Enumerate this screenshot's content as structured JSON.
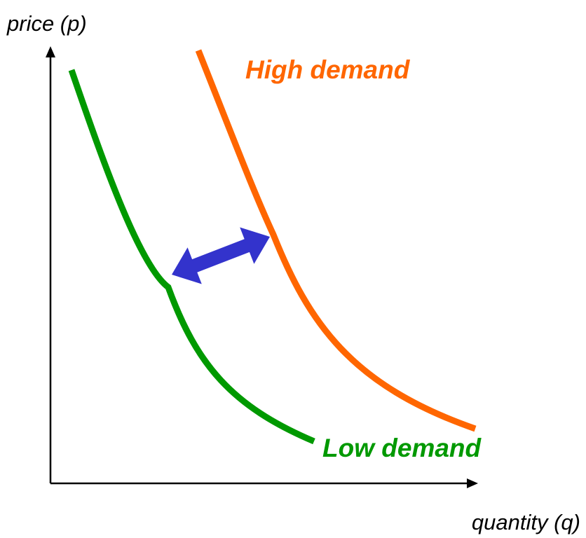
{
  "axes": {
    "y_label": "price (p)",
    "x_label": "quantity (q)"
  },
  "curves": [
    {
      "label": "High demand",
      "color": "#ff6600"
    },
    {
      "label": "Low demand",
      "color": "#009900"
    }
  ]
}
